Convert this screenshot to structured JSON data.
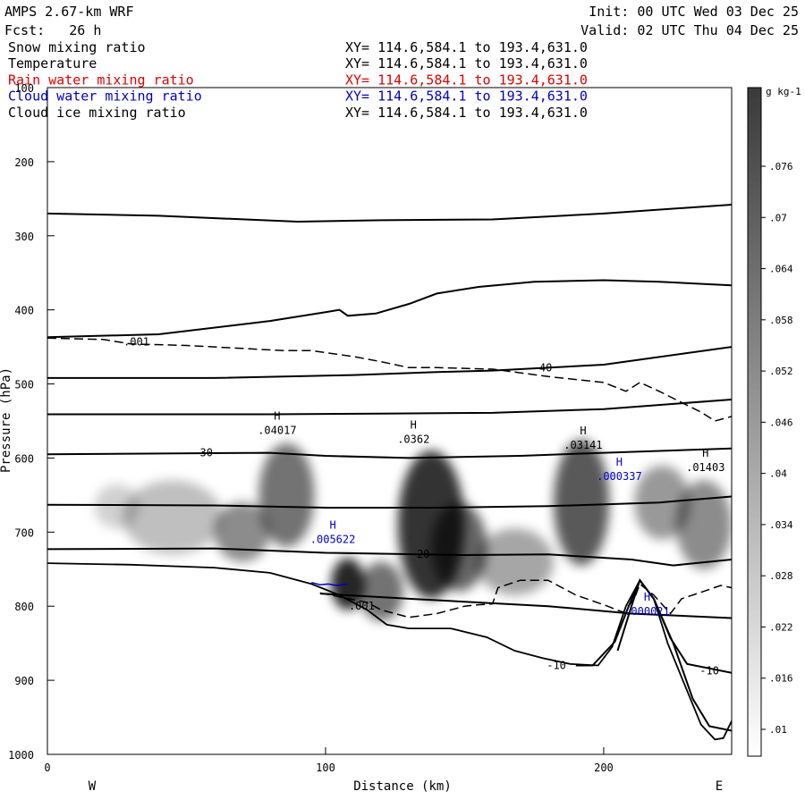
{
  "header": {
    "model": "AMPS 2.67-km WRF",
    "forecast": "Fcst:   26 h",
    "init": "Init: 00 UTC Wed 03 Dec 25",
    "valid": "Valid: 02 UTC Thu 04 Dec 25"
  },
  "fields": [
    {
      "name": "Snow mixing ratio",
      "xy": "XY= 114.6,584.1 to 193.4,631.0",
      "color": "#000000"
    },
    {
      "name": "Temperature",
      "xy": "XY= 114.6,584.1 to 193.4,631.0",
      "color": "#000000"
    },
    {
      "name": "Rain water mixing ratio",
      "xy": "XY= 114.6,584.1 to 193.4,631.0",
      "color": "#e00000"
    },
    {
      "name": "Cloud water mixing ratio",
      "xy": "XY= 114.6,584.1 to 193.4,631.0",
      "color": "#0000cc"
    },
    {
      "name": "Cloud ice mixing ratio",
      "xy": "XY= 114.6,584.1 to 193.4,631.0",
      "color": "#000000"
    }
  ],
  "chart_data": {
    "type": "cross-section",
    "xlabel": "Distance (km)",
    "ylabel": "Pressure (hPa)",
    "xlim": [
      0,
      246
    ],
    "ylim": [
      1000,
      100
    ],
    "x_ticks": [
      0,
      100,
      200
    ],
    "y_ticks": [
      100,
      200,
      300,
      400,
      500,
      600,
      700,
      800,
      900,
      1000
    ],
    "direction_left": "W",
    "direction_right": "E",
    "colorbar": {
      "unit": "g kg-1",
      "ticks": [
        ".076",
        ".07",
        ".064",
        ".058",
        ".052",
        ".046",
        ".04",
        ".034",
        ".028",
        ".022",
        ".016",
        ".01"
      ]
    },
    "snow_blobs": [
      {
        "x": 25,
        "p": 665,
        "rx": 8,
        "rp": 30,
        "a": 0.18
      },
      {
        "x": 45,
        "p": 680,
        "rx": 18,
        "rp": 50,
        "a": 0.25
      },
      {
        "x": 70,
        "p": 700,
        "rx": 10,
        "rp": 40,
        "a": 0.45
      },
      {
        "x": 86,
        "p": 650,
        "rx": 10,
        "rp": 70,
        "a": 0.55
      },
      {
        "x": 108,
        "p": 770,
        "rx": 6,
        "rp": 35,
        "a": 0.85
      },
      {
        "x": 120,
        "p": 780,
        "rx": 8,
        "rp": 40,
        "a": 0.55
      },
      {
        "x": 138,
        "p": 690,
        "rx": 12,
        "rp": 100,
        "a": 0.8
      },
      {
        "x": 148,
        "p": 720,
        "rx": 10,
        "rp": 60,
        "a": 0.6
      },
      {
        "x": 168,
        "p": 740,
        "rx": 14,
        "rp": 45,
        "a": 0.35
      },
      {
        "x": 192,
        "p": 660,
        "rx": 10,
        "rp": 85,
        "a": 0.65
      },
      {
        "x": 221,
        "p": 660,
        "rx": 10,
        "rp": 50,
        "a": 0.4
      },
      {
        "x": 236,
        "p": 690,
        "rx": 10,
        "rp": 60,
        "a": 0.45
      }
    ],
    "terrain": [
      [
        0,
        742
      ],
      [
        30,
        744
      ],
      [
        60,
        748
      ],
      [
        80,
        755
      ],
      [
        95,
        770
      ],
      [
        105,
        785
      ],
      [
        115,
        805
      ],
      [
        122,
        825
      ],
      [
        130,
        830
      ],
      [
        145,
        830
      ],
      [
        158,
        842
      ],
      [
        168,
        860
      ],
      [
        178,
        870
      ],
      [
        188,
        878
      ],
      [
        198,
        880
      ],
      [
        203,
        855
      ],
      [
        208,
        800
      ],
      [
        213,
        765
      ],
      [
        218,
        790
      ],
      [
        223,
        850
      ],
      [
        229,
        905
      ],
      [
        235,
        960
      ],
      [
        240,
        980
      ],
      [
        243,
        978
      ],
      [
        246,
        955
      ]
    ],
    "isotherms": [
      {
        "label": "",
        "points": [
          [
            0,
            270
          ],
          [
            40,
            273
          ],
          [
            90,
            281
          ],
          [
            120,
            279
          ],
          [
            160,
            278
          ],
          [
            200,
            270
          ],
          [
            246,
            258
          ]
        ]
      },
      {
        "label": "",
        "points": [
          [
            0,
            437
          ],
          [
            40,
            433
          ],
          [
            80,
            415
          ],
          [
            100,
            403
          ],
          [
            105,
            400
          ],
          [
            108,
            408
          ],
          [
            118,
            405
          ],
          [
            130,
            392
          ],
          [
            140,
            378
          ],
          [
            155,
            369
          ],
          [
            175,
            362
          ],
          [
            200,
            360
          ],
          [
            220,
            362
          ],
          [
            246,
            367
          ]
        ]
      },
      {
        "label": "-40",
        "lx": 178,
        "lp": 478,
        "points": [
          [
            0,
            492
          ],
          [
            60,
            492
          ],
          [
            110,
            488
          ],
          [
            140,
            484
          ],
          [
            160,
            482
          ],
          [
            200,
            474
          ],
          [
            246,
            450
          ]
        ]
      },
      {
        "label": "",
        "points": [
          [
            0,
            541
          ],
          [
            80,
            541
          ],
          [
            120,
            540
          ],
          [
            160,
            539
          ],
          [
            200,
            534
          ],
          [
            246,
            521
          ]
        ]
      },
      {
        "label": "-30",
        "lx": 56,
        "lp": 593,
        "points": [
          [
            0,
            595
          ],
          [
            80,
            593
          ],
          [
            100,
            597
          ],
          [
            130,
            600
          ],
          [
            170,
            597
          ],
          [
            200,
            593
          ],
          [
            246,
            587
          ]
        ]
      },
      {
        "label": "",
        "points": [
          [
            0,
            663
          ],
          [
            60,
            664
          ],
          [
            100,
            667
          ],
          [
            140,
            667
          ],
          [
            180,
            665
          ],
          [
            220,
            660
          ],
          [
            246,
            652
          ]
        ]
      },
      {
        "label": "-20",
        "lx": 134,
        "lp": 730,
        "points": [
          [
            0,
            723
          ],
          [
            60,
            722
          ],
          [
            100,
            728
          ],
          [
            150,
            731
          ],
          [
            180,
            730
          ],
          [
            210,
            737
          ],
          [
            225,
            745
          ],
          [
            246,
            737
          ]
        ]
      },
      {
        "label": "-10",
        "lx": 183,
        "lp": 880,
        "points": [
          [
            98,
            783
          ],
          [
            130,
            790
          ],
          [
            180,
            800
          ],
          [
            210,
            810
          ],
          [
            246,
            816
          ]
        ]
      },
      {
        "label": "-10",
        "lx": 238,
        "lp": 887,
        "points": [
          [
            190,
            880
          ],
          [
            196,
            880
          ],
          [
            204,
            848
          ],
          [
            209,
            800
          ],
          [
            213,
            765
          ],
          [
            218,
            790
          ],
          [
            224,
            843
          ],
          [
            230,
            878
          ],
          [
            246,
            890
          ]
        ]
      },
      {
        "label": "",
        "points": [
          [
            205,
            860
          ],
          [
            210,
            800
          ],
          [
            213,
            765
          ],
          [
            218,
            790
          ],
          [
            225,
            850
          ],
          [
            232,
            925
          ],
          [
            238,
            962
          ],
          [
            246,
            968
          ]
        ]
      }
    ],
    "dashed": [
      {
        "label": ".001",
        "lx": 32,
        "lp": 443,
        "points": [
          [
            0,
            438
          ],
          [
            20,
            440
          ],
          [
            30,
            446
          ],
          [
            50,
            448
          ],
          [
            70,
            452
          ],
          [
            85,
            455
          ],
          [
            95,
            455
          ],
          [
            110,
            463
          ],
          [
            120,
            470
          ],
          [
            130,
            478
          ],
          [
            140,
            478
          ],
          [
            160,
            480
          ],
          [
            170,
            485
          ],
          [
            180,
            490
          ],
          [
            200,
            498
          ],
          [
            208,
            510
          ],
          [
            213,
            498
          ],
          [
            220,
            510
          ],
          [
            228,
            525
          ],
          [
            235,
            538
          ],
          [
            240,
            550
          ],
          [
            246,
            544
          ]
        ]
      },
      {
        "label": ".001",
        "lx": 113,
        "lp": 800,
        "points": [
          [
            98,
            782
          ],
          [
            115,
            795
          ],
          [
            120,
            805
          ],
          [
            130,
            815
          ],
          [
            140,
            810
          ],
          [
            150,
            800
          ],
          [
            155,
            798
          ],
          [
            160,
            797
          ],
          [
            162,
            775
          ],
          [
            170,
            765
          ],
          [
            180,
            765
          ],
          [
            190,
            785
          ],
          [
            200,
            798
          ],
          [
            207,
            808
          ],
          [
            211,
            790
          ],
          [
            213,
            770
          ],
          [
            218,
            785
          ],
          [
            224,
            810
          ],
          [
            228,
            790
          ],
          [
            236,
            780
          ],
          [
            242,
            772
          ],
          [
            246,
            775
          ]
        ]
      }
    ],
    "cloud_ice_contour": [
      [
        95,
        768
      ],
      [
        98,
        771
      ],
      [
        101,
        770
      ],
      [
        104,
        772
      ],
      [
        108,
        770
      ]
    ],
    "maxima": [
      {
        "x": 81,
        "p": 558,
        "value": ".04017",
        "color": "#000000"
      },
      {
        "x": 130,
        "p": 570,
        "value": ".0362",
        "color": "#000000"
      },
      {
        "x": 191,
        "p": 578,
        "value": ".03141",
        "color": "#000000"
      },
      {
        "x": 235,
        "p": 608,
        "value": ".01403",
        "color": "#000000"
      },
      {
        "x": 204,
        "p": 620,
        "value": ".000337",
        "color": "#0000cc"
      },
      {
        "x": 101,
        "p": 705,
        "value": ".005622",
        "color": "#0000cc"
      },
      {
        "x": 214,
        "p": 802,
        "value": ".000021",
        "color": "#0000cc"
      }
    ]
  }
}
